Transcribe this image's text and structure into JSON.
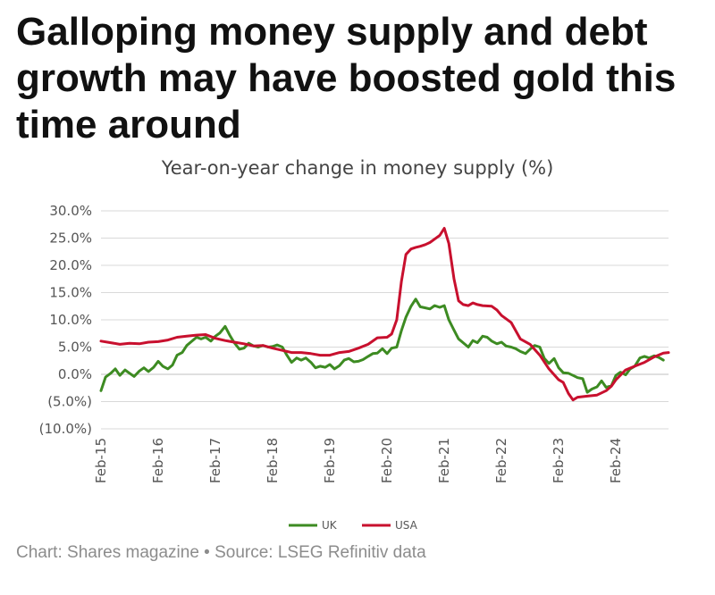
{
  "headline": "Galloping money supply and debt growth may have boosted gold this time around",
  "footer": "Chart: Shares magazine • Source: LSEG Refinitiv data",
  "chart_data": {
    "type": "line",
    "title": "Year-on-year change in money supply (%)",
    "xlabel": "",
    "ylabel": "",
    "ylim": [
      -10,
      30
    ],
    "y_ticks": [
      "30.0%",
      "25.0%",
      "20.0%",
      "15.0%",
      "10.0%",
      "5.0%",
      "0.0%",
      "(5.0%)",
      "(10.0%)"
    ],
    "x_ticks": [
      "Feb-15",
      "Feb-16",
      "Feb-17",
      "Feb-18",
      "Feb-19",
      "Feb-20",
      "Feb-21",
      "Feb-22",
      "Feb-23",
      "Feb-24"
    ],
    "x_range_years": [
      2015.0,
      2024.92
    ],
    "grid": "horizontal",
    "legend": "bottom-center",
    "series": [
      {
        "name": "UK",
        "color": "#3d8b22",
        "points": [
          [
            2015.0,
            -3.0
          ],
          [
            2015.08,
            -0.5
          ],
          [
            2015.17,
            0.2
          ],
          [
            2015.25,
            1.0
          ],
          [
            2015.33,
            -0.2
          ],
          [
            2015.42,
            0.8
          ],
          [
            2015.5,
            0.2
          ],
          [
            2015.58,
            -0.4
          ],
          [
            2015.67,
            0.6
          ],
          [
            2015.75,
            1.2
          ],
          [
            2015.83,
            0.5
          ],
          [
            2015.92,
            1.3
          ],
          [
            2016.0,
            2.4
          ],
          [
            2016.08,
            1.5
          ],
          [
            2016.17,
            1.0
          ],
          [
            2016.25,
            1.7
          ],
          [
            2016.33,
            3.5
          ],
          [
            2016.42,
            4.0
          ],
          [
            2016.5,
            5.3
          ],
          [
            2016.58,
            6.0
          ],
          [
            2016.67,
            6.8
          ],
          [
            2016.75,
            6.5
          ],
          [
            2016.83,
            6.8
          ],
          [
            2016.92,
            6.1
          ],
          [
            2017.0,
            7.0
          ],
          [
            2017.08,
            7.6
          ],
          [
            2017.17,
            8.8
          ],
          [
            2017.25,
            7.2
          ],
          [
            2017.33,
            5.8
          ],
          [
            2017.42,
            4.6
          ],
          [
            2017.5,
            4.8
          ],
          [
            2017.58,
            5.7
          ],
          [
            2017.67,
            5.2
          ],
          [
            2017.75,
            5.0
          ],
          [
            2017.83,
            5.3
          ],
          [
            2017.92,
            5.0
          ],
          [
            2018.0,
            5.1
          ],
          [
            2018.08,
            5.4
          ],
          [
            2018.17,
            5.0
          ],
          [
            2018.25,
            3.5
          ],
          [
            2018.33,
            2.2
          ],
          [
            2018.42,
            3.0
          ],
          [
            2018.5,
            2.6
          ],
          [
            2018.58,
            3.0
          ],
          [
            2018.67,
            2.2
          ],
          [
            2018.75,
            1.2
          ],
          [
            2018.83,
            1.5
          ],
          [
            2018.92,
            1.3
          ],
          [
            2019.0,
            1.8
          ],
          [
            2019.08,
            1.0
          ],
          [
            2019.17,
            1.6
          ],
          [
            2019.25,
            2.6
          ],
          [
            2019.33,
            2.9
          ],
          [
            2019.42,
            2.3
          ],
          [
            2019.5,
            2.4
          ],
          [
            2019.58,
            2.7
          ],
          [
            2019.67,
            3.3
          ],
          [
            2019.75,
            3.8
          ],
          [
            2019.83,
            3.9
          ],
          [
            2019.92,
            4.7
          ],
          [
            2020.0,
            3.8
          ],
          [
            2020.08,
            4.8
          ],
          [
            2020.17,
            5.0
          ],
          [
            2020.25,
            8.0
          ],
          [
            2020.33,
            10.5
          ],
          [
            2020.42,
            12.5
          ],
          [
            2020.5,
            13.8
          ],
          [
            2020.58,
            12.4
          ],
          [
            2020.67,
            12.2
          ],
          [
            2020.75,
            12.0
          ],
          [
            2020.83,
            12.6
          ],
          [
            2020.92,
            12.3
          ],
          [
            2021.0,
            12.6
          ],
          [
            2021.08,
            10.0
          ],
          [
            2021.17,
            8.1
          ],
          [
            2021.25,
            6.5
          ],
          [
            2021.33,
            5.8
          ],
          [
            2021.42,
            5.0
          ],
          [
            2021.5,
            6.2
          ],
          [
            2021.58,
            5.8
          ],
          [
            2021.67,
            7.0
          ],
          [
            2021.75,
            6.8
          ],
          [
            2021.83,
            6.1
          ],
          [
            2021.92,
            5.6
          ],
          [
            2022.0,
            5.9
          ],
          [
            2022.08,
            5.2
          ],
          [
            2022.17,
            5.0
          ],
          [
            2022.25,
            4.7
          ],
          [
            2022.33,
            4.2
          ],
          [
            2022.42,
            3.8
          ],
          [
            2022.5,
            4.6
          ],
          [
            2022.58,
            5.3
          ],
          [
            2022.67,
            5.0
          ],
          [
            2022.75,
            2.9
          ],
          [
            2022.83,
            2.0
          ],
          [
            2022.92,
            2.9
          ],
          [
            2023.0,
            1.2
          ],
          [
            2023.08,
            0.3
          ],
          [
            2023.17,
            0.2
          ],
          [
            2023.25,
            -0.2
          ],
          [
            2023.33,
            -0.6
          ],
          [
            2023.42,
            -0.8
          ],
          [
            2023.5,
            -3.3
          ],
          [
            2023.58,
            -2.7
          ],
          [
            2023.67,
            -2.3
          ],
          [
            2023.75,
            -1.2
          ],
          [
            2023.83,
            -2.4
          ],
          [
            2023.92,
            -2.1
          ],
          [
            2024.0,
            -0.2
          ],
          [
            2024.08,
            0.4
          ],
          [
            2024.17,
            -0.1
          ],
          [
            2024.25,
            1.0
          ],
          [
            2024.33,
            1.5
          ],
          [
            2024.42,
            3.0
          ],
          [
            2024.5,
            3.3
          ],
          [
            2024.58,
            3.0
          ],
          [
            2024.67,
            3.4
          ],
          [
            2024.75,
            3.1
          ],
          [
            2024.83,
            2.6
          ]
        ]
      },
      {
        "name": "USA",
        "color": "#c8102e",
        "points": [
          [
            2015.0,
            6.1
          ],
          [
            2015.17,
            5.8
          ],
          [
            2015.33,
            5.5
          ],
          [
            2015.5,
            5.7
          ],
          [
            2015.67,
            5.6
          ],
          [
            2015.83,
            5.9
          ],
          [
            2016.0,
            6.0
          ],
          [
            2016.17,
            6.3
          ],
          [
            2016.33,
            6.8
          ],
          [
            2016.5,
            7.0
          ],
          [
            2016.67,
            7.2
          ],
          [
            2016.83,
            7.3
          ],
          [
            2017.0,
            6.6
          ],
          [
            2017.17,
            6.2
          ],
          [
            2017.33,
            5.9
          ],
          [
            2017.5,
            5.6
          ],
          [
            2017.67,
            5.2
          ],
          [
            2017.83,
            5.3
          ],
          [
            2018.0,
            4.8
          ],
          [
            2018.17,
            4.4
          ],
          [
            2018.33,
            4.0
          ],
          [
            2018.5,
            4.0
          ],
          [
            2018.67,
            3.8
          ],
          [
            2018.83,
            3.5
          ],
          [
            2019.0,
            3.5
          ],
          [
            2019.17,
            4.0
          ],
          [
            2019.33,
            4.2
          ],
          [
            2019.5,
            4.8
          ],
          [
            2019.67,
            5.5
          ],
          [
            2019.83,
            6.7
          ],
          [
            2020.0,
            6.8
          ],
          [
            2020.08,
            7.4
          ],
          [
            2020.17,
            10.0
          ],
          [
            2020.25,
            17.0
          ],
          [
            2020.33,
            22.0
          ],
          [
            2020.42,
            23.0
          ],
          [
            2020.5,
            23.3
          ],
          [
            2020.58,
            23.5
          ],
          [
            2020.67,
            23.8
          ],
          [
            2020.75,
            24.2
          ],
          [
            2020.83,
            24.8
          ],
          [
            2020.92,
            25.5
          ],
          [
            2021.0,
            26.8
          ],
          [
            2021.08,
            24.0
          ],
          [
            2021.17,
            17.5
          ],
          [
            2021.25,
            13.5
          ],
          [
            2021.33,
            12.8
          ],
          [
            2021.42,
            12.6
          ],
          [
            2021.5,
            13.1
          ],
          [
            2021.58,
            12.8
          ],
          [
            2021.67,
            12.6
          ],
          [
            2021.83,
            12.5
          ],
          [
            2021.92,
            11.8
          ],
          [
            2022.0,
            10.8
          ],
          [
            2022.17,
            9.5
          ],
          [
            2022.33,
            6.5
          ],
          [
            2022.5,
            5.5
          ],
          [
            2022.67,
            3.5
          ],
          [
            2022.83,
            1.0
          ],
          [
            2023.0,
            -1.0
          ],
          [
            2023.08,
            -1.5
          ],
          [
            2023.17,
            -3.5
          ],
          [
            2023.25,
            -4.7
          ],
          [
            2023.33,
            -4.2
          ],
          [
            2023.5,
            -4.0
          ],
          [
            2023.67,
            -3.8
          ],
          [
            2023.83,
            -3.0
          ],
          [
            2023.92,
            -2.2
          ],
          [
            2024.0,
            -1.0
          ],
          [
            2024.17,
            0.8
          ],
          [
            2024.33,
            1.5
          ],
          [
            2024.5,
            2.2
          ],
          [
            2024.67,
            3.2
          ],
          [
            2024.83,
            3.9
          ],
          [
            2024.92,
            4.0
          ]
        ]
      }
    ]
  }
}
